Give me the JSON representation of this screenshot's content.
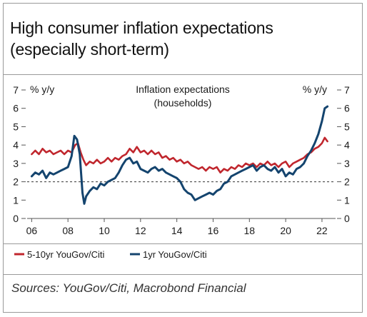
{
  "title": {
    "line1": "High consumer inflation expectations",
    "line2": "(especially short-term)"
  },
  "source": "Sources: YouGov/Citi, Macrobond Financial",
  "chart_data": {
    "type": "line",
    "title": "Inflation expectations",
    "subtitle": "(households)",
    "left_axis_label": "% y/y",
    "right_axis_label": "% y/y",
    "ylim": [
      0,
      7
    ],
    "y_ticks": [
      0,
      1,
      2,
      3,
      4,
      5,
      6,
      7
    ],
    "xlim": [
      2005.75,
      2022.75
    ],
    "x_ticks": [
      {
        "value": 2006,
        "label": "06"
      },
      {
        "value": 2008,
        "label": "08"
      },
      {
        "value": 2010,
        "label": "10"
      },
      {
        "value": 2012,
        "label": "12"
      },
      {
        "value": 2014,
        "label": "14"
      },
      {
        "value": 2016,
        "label": "16"
      },
      {
        "value": 2018,
        "label": "18"
      },
      {
        "value": 2020,
        "label": "20"
      },
      {
        "value": 2022,
        "label": "22"
      }
    ],
    "reference_line": 2,
    "legend_position": "bottom-left",
    "series": [
      {
        "name": "5-10yr YouGov/Citi",
        "color": "#c0262d",
        "points": [
          [
            2006.0,
            3.5
          ],
          [
            2006.2,
            3.7
          ],
          [
            2006.4,
            3.5
          ],
          [
            2006.6,
            3.8
          ],
          [
            2006.8,
            3.6
          ],
          [
            2007.0,
            3.7
          ],
          [
            2007.2,
            3.5
          ],
          [
            2007.4,
            3.6
          ],
          [
            2007.6,
            3.7
          ],
          [
            2007.8,
            3.5
          ],
          [
            2008.0,
            3.7
          ],
          [
            2008.2,
            3.6
          ],
          [
            2008.4,
            4.0
          ],
          [
            2008.55,
            4.1
          ],
          [
            2008.7,
            3.6
          ],
          [
            2008.85,
            3.2
          ],
          [
            2009.0,
            2.9
          ],
          [
            2009.2,
            3.1
          ],
          [
            2009.4,
            3.0
          ],
          [
            2009.6,
            3.2
          ],
          [
            2009.8,
            3.0
          ],
          [
            2010.0,
            3.1
          ],
          [
            2010.2,
            3.3
          ],
          [
            2010.4,
            3.1
          ],
          [
            2010.6,
            3.3
          ],
          [
            2010.8,
            3.2
          ],
          [
            2011.0,
            3.4
          ],
          [
            2011.2,
            3.5
          ],
          [
            2011.4,
            3.8
          ],
          [
            2011.6,
            3.6
          ],
          [
            2011.8,
            3.9
          ],
          [
            2012.0,
            3.6
          ],
          [
            2012.2,
            3.7
          ],
          [
            2012.4,
            3.5
          ],
          [
            2012.6,
            3.7
          ],
          [
            2012.8,
            3.5
          ],
          [
            2013.0,
            3.6
          ],
          [
            2013.2,
            3.3
          ],
          [
            2013.4,
            3.4
          ],
          [
            2013.6,
            3.2
          ],
          [
            2013.8,
            3.3
          ],
          [
            2014.0,
            3.1
          ],
          [
            2014.2,
            3.2
          ],
          [
            2014.4,
            3.0
          ],
          [
            2014.6,
            3.1
          ],
          [
            2014.8,
            2.9
          ],
          [
            2015.0,
            2.8
          ],
          [
            2015.2,
            2.7
          ],
          [
            2015.4,
            2.8
          ],
          [
            2015.6,
            2.6
          ],
          [
            2015.8,
            2.8
          ],
          [
            2016.0,
            2.7
          ],
          [
            2016.2,
            2.8
          ],
          [
            2016.4,
            2.5
          ],
          [
            2016.6,
            2.7
          ],
          [
            2016.8,
            2.6
          ],
          [
            2017.0,
            2.8
          ],
          [
            2017.2,
            2.7
          ],
          [
            2017.4,
            2.9
          ],
          [
            2017.6,
            2.8
          ],
          [
            2017.8,
            3.0
          ],
          [
            2018.0,
            2.9
          ],
          [
            2018.2,
            3.0
          ],
          [
            2018.4,
            2.8
          ],
          [
            2018.6,
            3.0
          ],
          [
            2018.8,
            2.9
          ],
          [
            2019.0,
            3.1
          ],
          [
            2019.2,
            2.9
          ],
          [
            2019.4,
            3.0
          ],
          [
            2019.6,
            2.8
          ],
          [
            2019.8,
            3.0
          ],
          [
            2020.0,
            3.1
          ],
          [
            2020.2,
            2.8
          ],
          [
            2020.4,
            3.0
          ],
          [
            2020.6,
            3.1
          ],
          [
            2020.8,
            3.2
          ],
          [
            2021.0,
            3.3
          ],
          [
            2021.2,
            3.5
          ],
          [
            2021.4,
            3.6
          ],
          [
            2021.6,
            3.8
          ],
          [
            2021.8,
            3.9
          ],
          [
            2022.0,
            4.1
          ],
          [
            2022.15,
            4.4
          ],
          [
            2022.3,
            4.2
          ]
        ]
      },
      {
        "name": "1yr YouGov/Citi",
        "color": "#14446e",
        "points": [
          [
            2006.0,
            2.3
          ],
          [
            2006.2,
            2.5
          ],
          [
            2006.4,
            2.4
          ],
          [
            2006.6,
            2.6
          ],
          [
            2006.8,
            2.2
          ],
          [
            2007.0,
            2.5
          ],
          [
            2007.2,
            2.4
          ],
          [
            2007.4,
            2.5
          ],
          [
            2007.6,
            2.6
          ],
          [
            2007.8,
            2.7
          ],
          [
            2008.0,
            2.8
          ],
          [
            2008.2,
            3.4
          ],
          [
            2008.35,
            4.5
          ],
          [
            2008.5,
            4.3
          ],
          [
            2008.65,
            3.5
          ],
          [
            2008.8,
            1.4
          ],
          [
            2008.9,
            0.8
          ],
          [
            2009.0,
            1.2
          ],
          [
            2009.2,
            1.5
          ],
          [
            2009.4,
            1.7
          ],
          [
            2009.6,
            1.6
          ],
          [
            2009.8,
            1.9
          ],
          [
            2010.0,
            1.8
          ],
          [
            2010.2,
            2.0
          ],
          [
            2010.4,
            2.1
          ],
          [
            2010.6,
            2.2
          ],
          [
            2010.8,
            2.5
          ],
          [
            2011.0,
            2.9
          ],
          [
            2011.2,
            3.2
          ],
          [
            2011.4,
            3.3
          ],
          [
            2011.6,
            3.0
          ],
          [
            2011.8,
            3.1
          ],
          [
            2012.0,
            2.7
          ],
          [
            2012.2,
            2.6
          ],
          [
            2012.4,
            2.5
          ],
          [
            2012.6,
            2.7
          ],
          [
            2012.8,
            2.8
          ],
          [
            2013.0,
            2.6
          ],
          [
            2013.2,
            2.7
          ],
          [
            2013.4,
            2.5
          ],
          [
            2013.6,
            2.4
          ],
          [
            2013.8,
            2.3
          ],
          [
            2014.0,
            2.2
          ],
          [
            2014.2,
            2.0
          ],
          [
            2014.4,
            1.6
          ],
          [
            2014.6,
            1.4
          ],
          [
            2014.8,
            1.3
          ],
          [
            2015.0,
            1.0
          ],
          [
            2015.2,
            1.1
          ],
          [
            2015.4,
            1.2
          ],
          [
            2015.6,
            1.3
          ],
          [
            2015.8,
            1.4
          ],
          [
            2016.0,
            1.3
          ],
          [
            2016.2,
            1.5
          ],
          [
            2016.4,
            1.6
          ],
          [
            2016.6,
            1.9
          ],
          [
            2016.8,
            2.0
          ],
          [
            2017.0,
            2.3
          ],
          [
            2017.2,
            2.4
          ],
          [
            2017.4,
            2.5
          ],
          [
            2017.6,
            2.6
          ],
          [
            2017.8,
            2.7
          ],
          [
            2018.0,
            2.8
          ],
          [
            2018.2,
            2.9
          ],
          [
            2018.4,
            2.6
          ],
          [
            2018.6,
            2.8
          ],
          [
            2018.8,
            2.9
          ],
          [
            2019.0,
            2.7
          ],
          [
            2019.2,
            2.6
          ],
          [
            2019.4,
            2.8
          ],
          [
            2019.6,
            2.5
          ],
          [
            2019.8,
            2.7
          ],
          [
            2020.0,
            2.3
          ],
          [
            2020.2,
            2.5
          ],
          [
            2020.4,
            2.4
          ],
          [
            2020.6,
            2.7
          ],
          [
            2020.8,
            2.8
          ],
          [
            2021.0,
            3.0
          ],
          [
            2021.2,
            3.4
          ],
          [
            2021.4,
            3.7
          ],
          [
            2021.6,
            4.1
          ],
          [
            2021.8,
            4.6
          ],
          [
            2022.0,
            5.3
          ],
          [
            2022.15,
            6.0
          ],
          [
            2022.3,
            6.1
          ]
        ]
      }
    ]
  }
}
